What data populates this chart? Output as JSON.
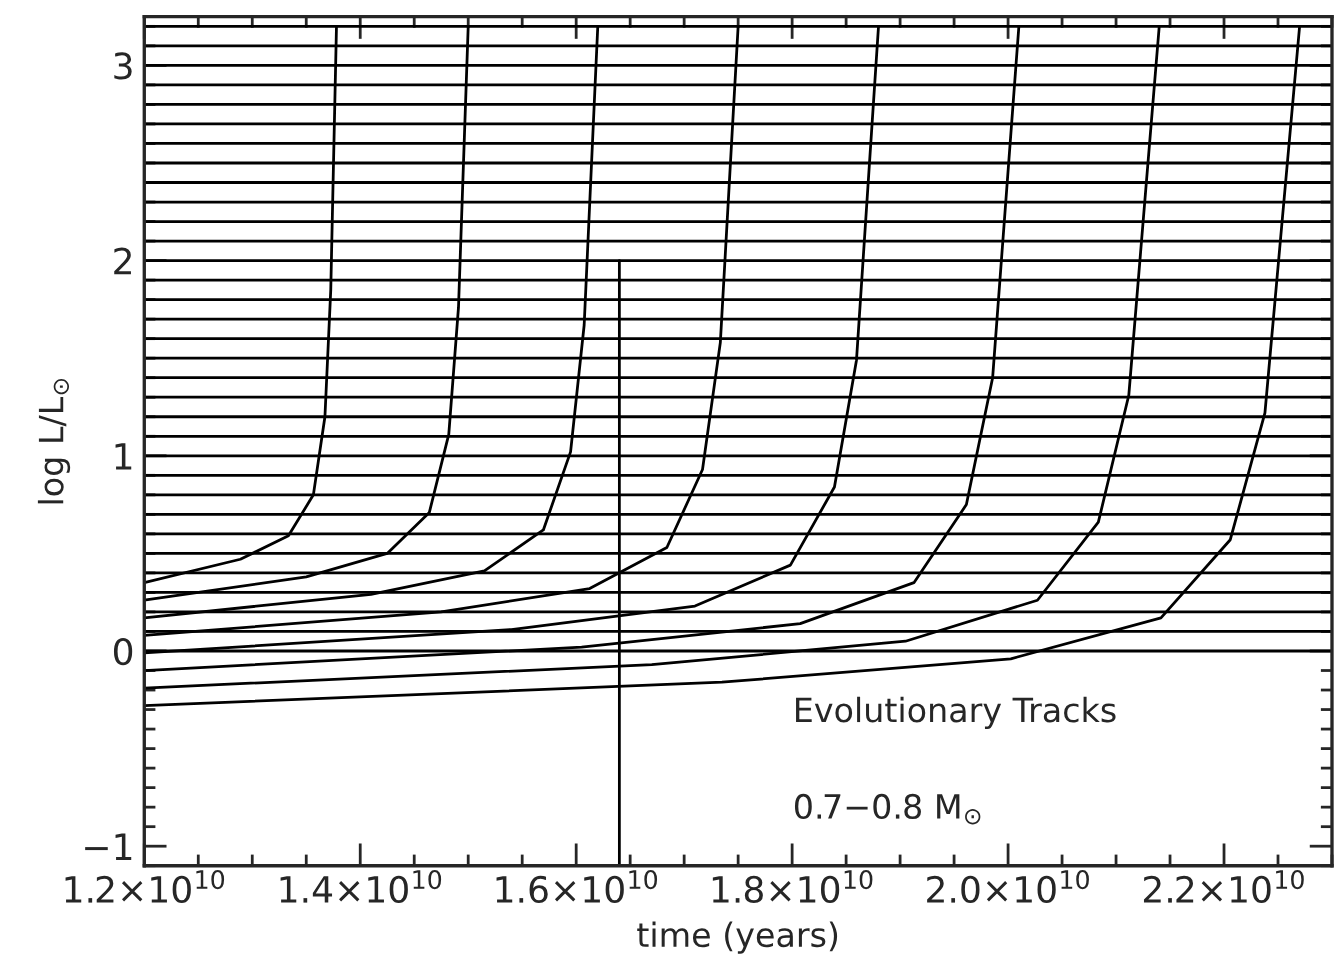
{
  "chart_data": {
    "type": "line",
    "xlabel": "time (years)",
    "ylabel": "log L/L$_{⊙}$",
    "xlim": [
      12000000000.0,
      23000000000.0
    ],
    "ylim": [
      -1.1,
      3.25
    ],
    "xticks": [
      {
        "value": 12000000000.0,
        "label": "1.2×10$^{10}$"
      },
      {
        "value": 14000000000.0,
        "label": "1.4×10$^{10}$"
      },
      {
        "value": 16000000000.0,
        "label": "1.6×10$^{10}$"
      },
      {
        "value": 18000000000.0,
        "label": "1.8×10$^{10}$"
      },
      {
        "value": 20000000000.0,
        "label": "2.0×10$^{10}$"
      },
      {
        "value": 22000000000.0,
        "label": "2.2×10$^{10}$"
      }
    ],
    "yticks": [
      {
        "value": -1,
        "label": "−1"
      },
      0,
      1,
      2,
      3
    ],
    "grid": false,
    "series": [
      {
        "color": "#000000",
        "x": [
          12000000000.0,
          12890000000.0,
          13335000000.0,
          13566000000.0,
          13673000000.0,
          13727000000.0,
          13780000000.0
        ],
        "values": [
          0.35,
          0.47,
          0.59,
          0.8,
          1.2,
          1.85,
          3.2
        ]
      },
      {
        "color": "#000000",
        "x": [
          12000000000.0,
          13500000000.0,
          14250000000.0,
          14640000000.0,
          14820000000.0,
          14910000000.0,
          15000000000.0
        ],
        "values": [
          0.26,
          0.38,
          0.5,
          0.71,
          1.11,
          1.76,
          3.2
        ]
      },
      {
        "color": "#000000",
        "x": [
          12000000000.0,
          14100000000.0,
          15150000000.0,
          15696000000.0,
          15948000000.0,
          16074000000.0,
          16200000000.0
        ],
        "values": [
          0.17,
          0.29,
          0.41,
          0.62,
          1.02,
          1.67,
          3.2
        ]
      },
      {
        "color": "#000000",
        "x": [
          12000000000.0,
          14750000000.0,
          16125000000.0,
          16840000000.0,
          17170000000.0,
          17335000000.0,
          17500000000.0
        ],
        "values": [
          0.08,
          0.2,
          0.32,
          0.53,
          0.93,
          1.58,
          3.2
        ]
      },
      {
        "color": "#000000",
        "x": [
          12000000000.0,
          15400000000.0,
          17100000000.0,
          17984000000.0,
          18392000000.0,
          18596000000.0,
          18800000000.0
        ],
        "values": [
          -0.01,
          0.11,
          0.23,
          0.44,
          0.84,
          1.49,
          3.2
        ]
      },
      {
        "color": "#000000",
        "x": [
          12000000000.0,
          16050000000.0,
          18075000000.0,
          19128000000.0,
          19614000000.0,
          19857000000.0,
          20100000000.0
        ],
        "values": [
          -0.1,
          0.02,
          0.14,
          0.35,
          0.75,
          1.4,
          3.2
        ]
      },
      {
        "color": "#000000",
        "x": [
          12000000000.0,
          16700000000.0,
          19050000000.0,
          20272000000.0,
          20836000000.0,
          21118000000.0,
          21400000000.0
        ],
        "values": [
          -0.19,
          -0.07,
          0.05,
          0.26,
          0.66,
          1.31,
          3.2
        ]
      },
      {
        "color": "#000000",
        "x": [
          12000000000.0,
          17350000000.0,
          20025000000.0,
          21416000000.0,
          22058000000.0,
          22379000000.0,
          22700000000.0
        ],
        "values": [
          -0.28,
          -0.16,
          -0.04,
          0.17,
          0.57,
          1.22,
          3.2
        ]
      },
      {
        "color": "#000000",
        "x": [
          16400000000.0,
          16400000000.0
        ],
        "values": [
          -1.1,
          2.0
        ]
      }
    ],
    "ref_lines": [
      {
        "axis": "y",
        "value": 0.0
      },
      {
        "axis": "y",
        "value": 0.1
      },
      {
        "axis": "y",
        "value": 0.2
      },
      {
        "axis": "y",
        "value": 0.3
      },
      {
        "axis": "y",
        "value": 0.4
      },
      {
        "axis": "y",
        "value": 0.5
      },
      {
        "axis": "y",
        "value": 0.6
      },
      {
        "axis": "y",
        "value": 0.7
      },
      {
        "axis": "y",
        "value": 0.8
      },
      {
        "axis": "y",
        "value": 0.9
      },
      {
        "axis": "y",
        "value": 1.0
      },
      {
        "axis": "y",
        "value": 1.1
      },
      {
        "axis": "y",
        "value": 1.2
      },
      {
        "axis": "y",
        "value": 1.3
      },
      {
        "axis": "y",
        "value": 1.4
      },
      {
        "axis": "y",
        "value": 1.5
      },
      {
        "axis": "y",
        "value": 1.6
      },
      {
        "axis": "y",
        "value": 1.7
      },
      {
        "axis": "y",
        "value": 1.8
      },
      {
        "axis": "y",
        "value": 1.9
      },
      {
        "axis": "y",
        "value": 2.0
      },
      {
        "axis": "y",
        "value": 2.1
      },
      {
        "axis": "y",
        "value": 2.2
      },
      {
        "axis": "y",
        "value": 2.3
      },
      {
        "axis": "y",
        "value": 2.4
      },
      {
        "axis": "y",
        "value": 2.5
      },
      {
        "axis": "y",
        "value": 2.6
      },
      {
        "axis": "y",
        "value": 2.7
      },
      {
        "axis": "y",
        "value": 2.8
      },
      {
        "axis": "y",
        "value": 2.9
      },
      {
        "axis": "y",
        "value": 3.0
      },
      {
        "axis": "y",
        "value": 3.1
      },
      {
        "axis": "y",
        "value": 3.2
      }
    ],
    "annotations": [
      "Evolutionary Tracks",
      "0.7−0.8 M$_{⊙}$"
    ]
  }
}
